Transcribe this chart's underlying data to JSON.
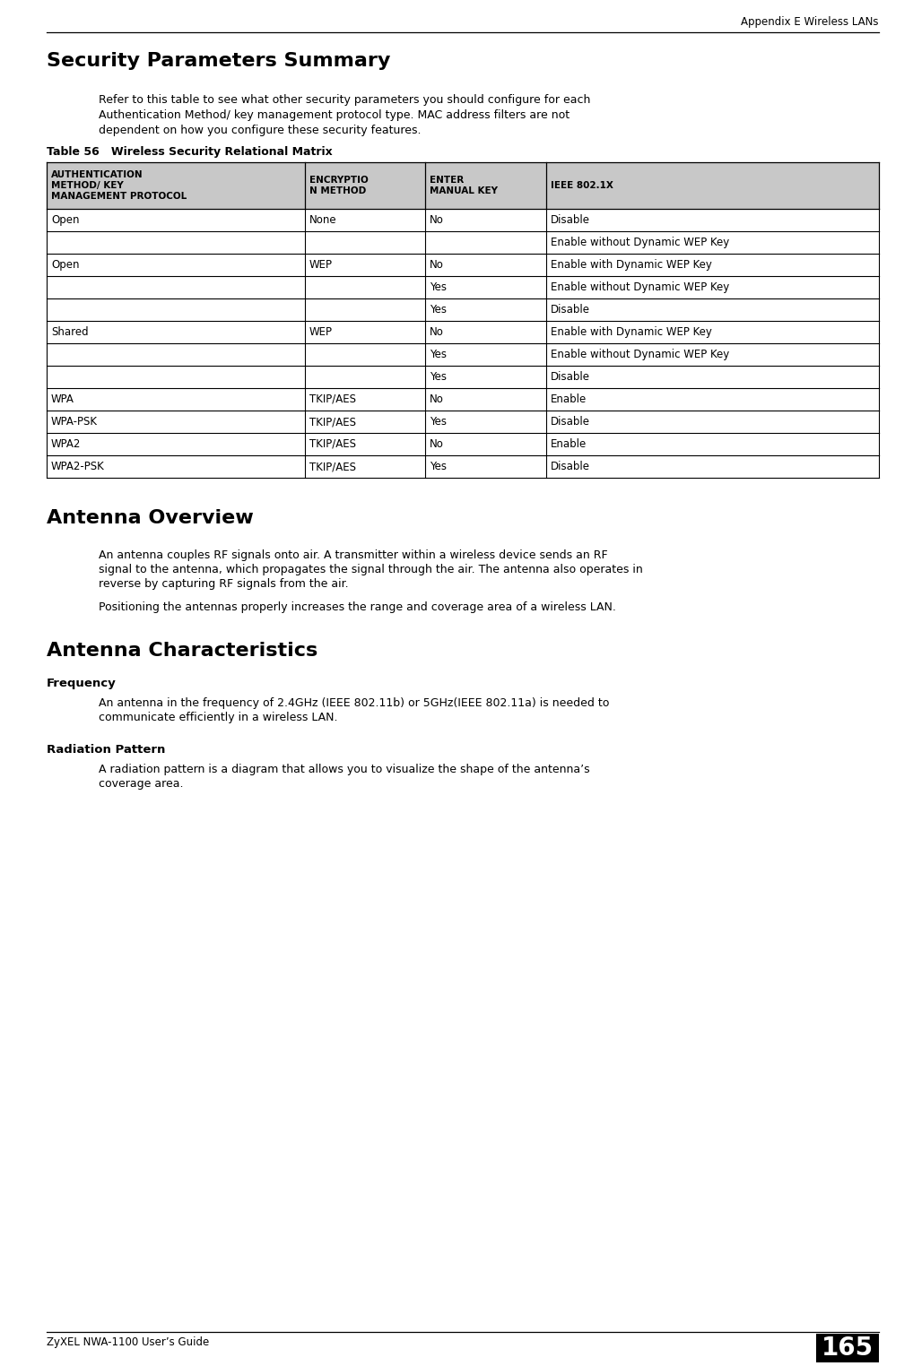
{
  "page_header": "Appendix E Wireless LANs",
  "page_number": "165",
  "footer_left": "ZyXEL NWA-1100 User’s Guide",
  "section_title": "Security Parameters Summary",
  "intro_text_line1": "Refer to this table to see what other security parameters you should configure for each",
  "intro_text_line2": "Authentication Method/ key management protocol type. MAC address filters are not",
  "intro_text_line3": "dependent on how you configure these security features.",
  "table_caption": "Table 56   Wireless Security Relational Matrix",
  "table_headers": [
    "AUTHENTICATION\nMETHOD/ KEY\nMANAGEMENT PROTOCOL",
    "ENCRYPTIO\nN METHOD",
    "ENTER\nMANUAL KEY",
    "IEEE 802.1X"
  ],
  "table_rows": [
    [
      "Open",
      "None",
      "No",
      "Disable"
    ],
    [
      "",
      "",
      "",
      "Enable without Dynamic WEP Key"
    ],
    [
      "Open",
      "WEP",
      "No",
      "Enable with Dynamic WEP Key"
    ],
    [
      "",
      "",
      "Yes",
      "Enable without Dynamic WEP Key"
    ],
    [
      "",
      "",
      "Yes",
      "Disable"
    ],
    [
      "Shared",
      "WEP",
      "No",
      "Enable with Dynamic WEP Key"
    ],
    [
      "",
      "",
      "Yes",
      "Enable without Dynamic WEP Key"
    ],
    [
      "",
      "",
      "Yes",
      "Disable"
    ],
    [
      "WPA",
      "TKIP/AES",
      "No",
      "Enable"
    ],
    [
      "WPA-PSK",
      "TKIP/AES",
      "Yes",
      "Disable"
    ],
    [
      "WPA2",
      "TKIP/AES",
      "No",
      "Enable"
    ],
    [
      "WPA2-PSK",
      "TKIP/AES",
      "Yes",
      "Disable"
    ]
  ],
  "section2_title": "Antenna Overview",
  "section2_para1_line1": "An antenna couples RF signals onto air. A transmitter within a wireless device sends an RF",
  "section2_para1_line2": "signal to the antenna, which propagates the signal through the air. The antenna also operates in",
  "section2_para1_line3": "reverse by capturing RF signals from the air.",
  "section2_para2": "Positioning the antennas properly increases the range and coverage area of a wireless LAN.",
  "section3_title": "Antenna Characteristics",
  "subsection1_title": "Frequency",
  "subsection1_text_line1": "An antenna in the frequency of 2.4GHz (IEEE 802.11b) or 5GHz(IEEE 802.11a) is needed to",
  "subsection1_text_line2": "communicate efficiently in a wireless LAN.",
  "subsection2_title": "Radiation Pattern",
  "subsection2_text_line1": "A radiation pattern is a diagram that allows you to visualize the shape of the antenna’s",
  "subsection2_text_line2": "coverage area.",
  "header_bg": "#c8c8c8",
  "bg_color": "#ffffff",
  "fig_width": 10.18,
  "fig_height": 15.24,
  "dpi": 100
}
